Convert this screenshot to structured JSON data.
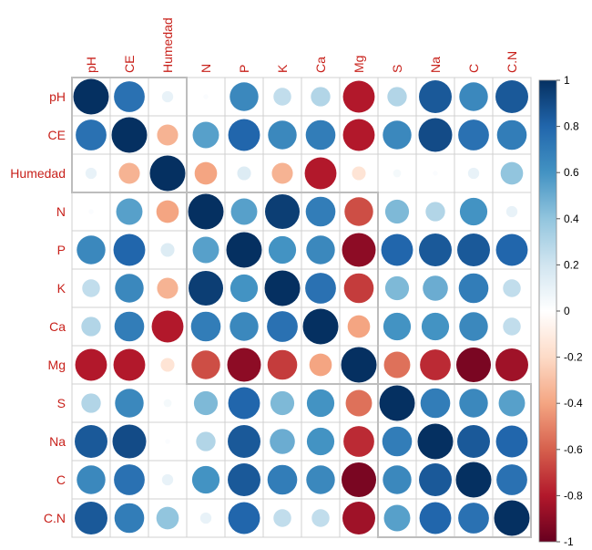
{
  "chart_data": {
    "type": "heatmap",
    "title": "",
    "variables": [
      "pH",
      "CE",
      "Humedad",
      "N",
      "P",
      "K",
      "Ca",
      "Mg",
      "S",
      "Na",
      "C",
      "C.N"
    ],
    "matrix": [
      [
        1.0,
        0.75,
        0.1,
        0.02,
        0.65,
        0.25,
        0.3,
        -0.8,
        0.3,
        0.85,
        0.65,
        0.85
      ],
      [
        0.75,
        1.0,
        -0.35,
        0.55,
        0.8,
        0.65,
        0.7,
        -0.8,
        0.65,
        0.9,
        0.75,
        0.7
      ],
      [
        0.1,
        -0.35,
        1.0,
        -0.4,
        0.15,
        -0.35,
        -0.8,
        -0.15,
        0.05,
        0.02,
        0.1,
        0.4
      ],
      [
        0.02,
        0.55,
        -0.4,
        1.0,
        0.55,
        0.95,
        0.7,
        -0.65,
        0.45,
        0.3,
        0.6,
        0.1
      ],
      [
        0.65,
        0.8,
        0.15,
        0.55,
        1.0,
        0.6,
        0.65,
        -0.9,
        0.8,
        0.85,
        0.85,
        0.8
      ],
      [
        0.25,
        0.65,
        -0.35,
        0.95,
        0.6,
        1.0,
        0.75,
        -0.7,
        0.45,
        0.5,
        0.7,
        0.25
      ],
      [
        0.3,
        0.7,
        -0.8,
        0.7,
        0.65,
        0.75,
        1.0,
        -0.4,
        0.6,
        0.6,
        0.65,
        0.25
      ],
      [
        -0.8,
        -0.8,
        -0.15,
        -0.65,
        -0.9,
        -0.7,
        -0.4,
        1.0,
        -0.55,
        -0.75,
        -0.95,
        -0.85
      ],
      [
        0.3,
        0.65,
        0.05,
        0.45,
        0.8,
        0.45,
        0.6,
        -0.55,
        1.0,
        0.7,
        0.65,
        0.55
      ],
      [
        0.85,
        0.9,
        0.02,
        0.3,
        0.85,
        0.5,
        0.6,
        -0.75,
        0.7,
        1.0,
        0.85,
        0.8
      ],
      [
        0.65,
        0.75,
        0.1,
        0.6,
        0.85,
        0.7,
        0.65,
        -0.95,
        0.65,
        0.85,
        1.0,
        0.75
      ],
      [
        0.85,
        0.7,
        0.4,
        0.1,
        0.8,
        0.25,
        0.25,
        -0.85,
        0.55,
        0.8,
        0.75,
        1.0
      ]
    ],
    "value_range": [
      -1,
      1
    ],
    "colorbar_ticks": [
      "1",
      "0.8",
      "0.6",
      "0.4",
      "0.2",
      "0",
      "-0.2",
      "-0.4",
      "-0.6",
      "-0.8",
      "-1"
    ],
    "colorbar_tick_values": [
      1,
      0.8,
      0.6,
      0.4,
      0.2,
      0,
      -0.2,
      -0.4,
      -0.6,
      -0.8,
      -1
    ],
    "color_scale": [
      "#67001f",
      "#b2182b",
      "#d6604d",
      "#f4a582",
      "#fddbc7",
      "#ffffff",
      "#d1e5f0",
      "#92c5de",
      "#4393c3",
      "#2166ac",
      "#053061"
    ],
    "cluster_boxes": [
      [
        0,
        2
      ],
      [
        3,
        7
      ],
      [
        8,
        11
      ]
    ],
    "cell_border_color": "#d0d0d0",
    "cluster_border_color": "#bdbdbd",
    "label_color": "#c8211b"
  }
}
